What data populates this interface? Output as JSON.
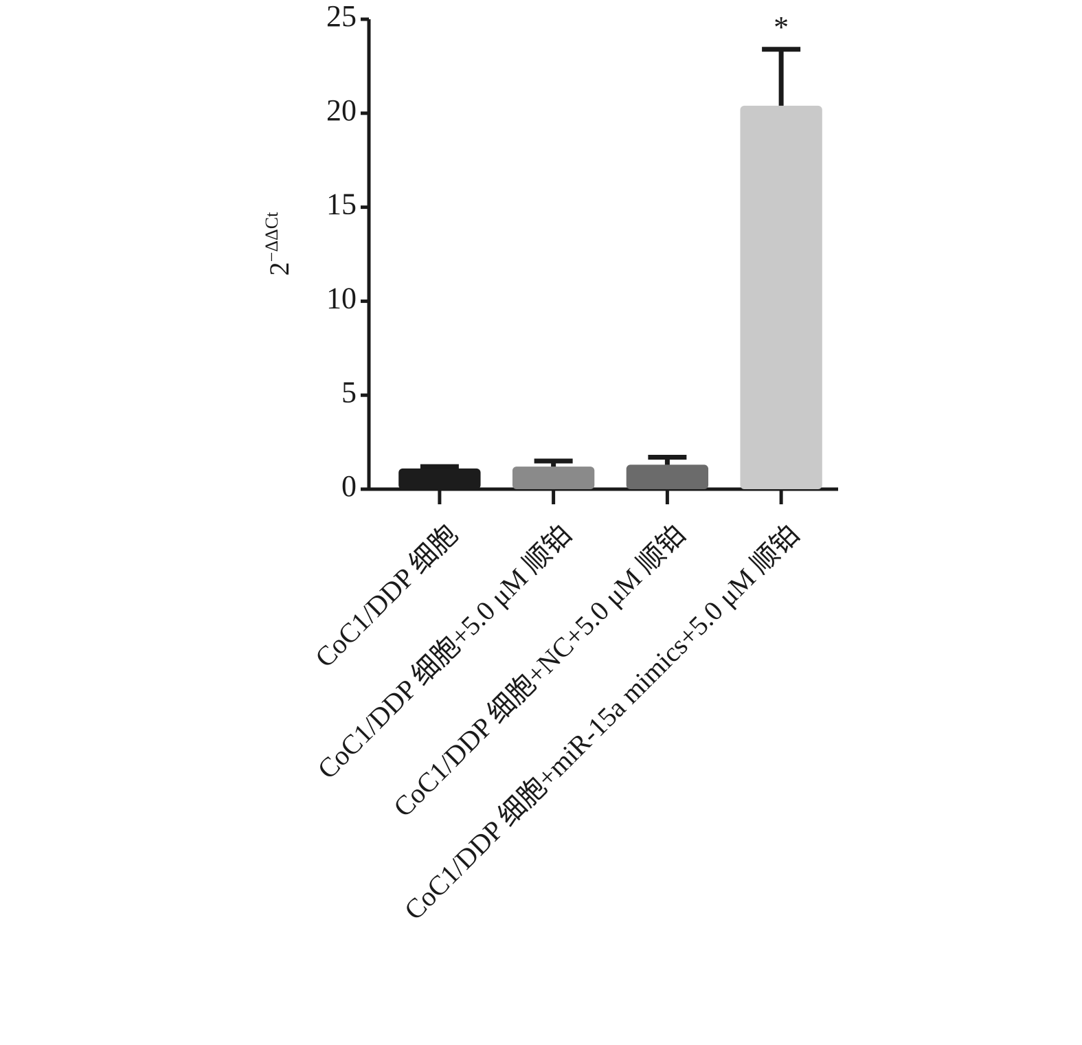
{
  "chart_data": {
    "type": "bar",
    "ylabel": {
      "base": "2",
      "exponent": "−ΔΔCt"
    },
    "categories": [
      "CoC1/DDP 细胞",
      "CoC1/DDP 细胞+5.0 μM 顺铂",
      "CoC1/DDP 细胞+NC+5.0 μM 顺铂",
      "CoC1/DDP 细胞+miR-15a mimics+5.0 μM 顺铂"
    ],
    "values": [
      1.1,
      1.2,
      1.3,
      20.4
    ],
    "errors": [
      0.1,
      0.3,
      0.4,
      3.0
    ],
    "colors": [
      "#1c1c1c",
      "#8a8a8a",
      "#6b6b6b",
      "#c9c9c9"
    ],
    "annotations": [
      {
        "category": 3,
        "text": "*"
      }
    ],
    "ylim": [
      0,
      25
    ],
    "yticks": [
      0,
      5,
      10,
      15,
      20,
      25
    ],
    "grid": false
  }
}
